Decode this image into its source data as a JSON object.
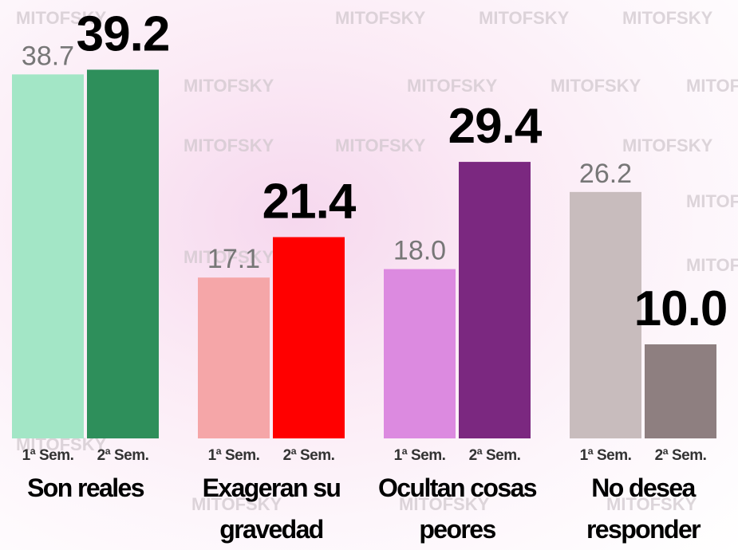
{
  "watermark": "MITOFSKY",
  "chart_data": {
    "type": "bar",
    "categories": [
      "Son reales",
      "Exageran su gravedad",
      "Ocultan cosas peores",
      "No desea responder"
    ],
    "series": [
      {
        "name": "1ª Sem.",
        "colors": [
          "#a3e6c6",
          "#f5a6a8",
          "#dc8ae0",
          "#c8bcbd"
        ],
        "values": [
          38.7,
          17.1,
          18.0,
          26.2
        ],
        "value_labels": [
          "38.7",
          "17.1",
          "18.0",
          "26.2"
        ]
      },
      {
        "name": "2ª Sem.",
        "colors": [
          "#2e8f5b",
          "#ff0000",
          "#7b2880",
          "#8e7f80"
        ],
        "values": [
          39.2,
          21.4,
          29.4,
          10.0
        ],
        "value_labels": [
          "39.2",
          "21.4",
          "29.4",
          "10.0"
        ]
      }
    ]
  }
}
